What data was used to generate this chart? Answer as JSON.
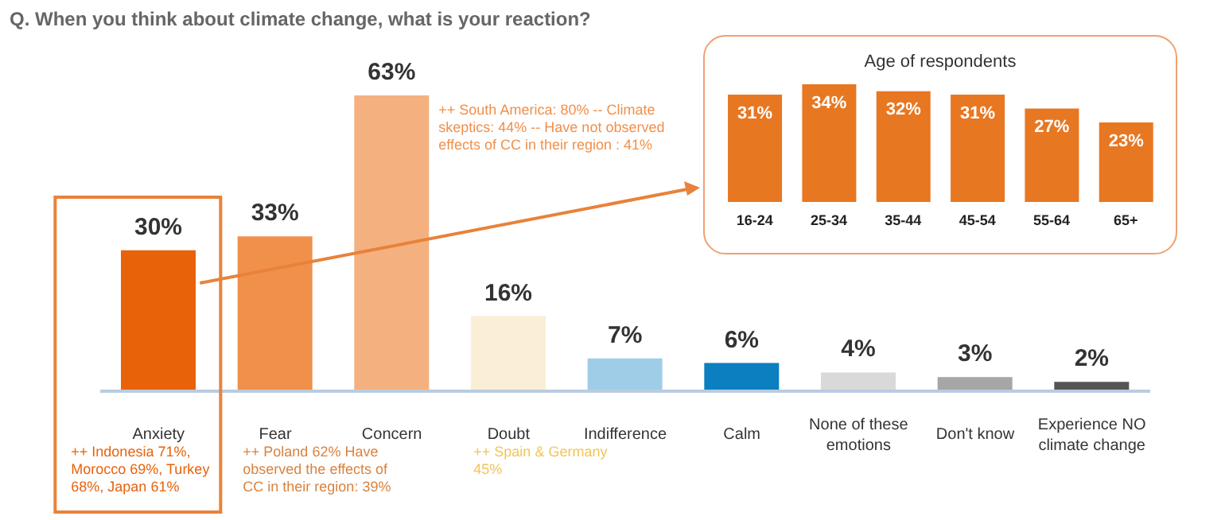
{
  "chart_data": [
    {
      "type": "bar",
      "title": "Q. When you think about climate change, what is your reaction?",
      "categories": [
        "Anxiety",
        "Fear",
        "Concern",
        "Doubt",
        "Indifference",
        "Calm",
        "None of these emotions",
        "Don't know",
        "Experience NO climate change"
      ],
      "values": [
        30,
        33,
        63,
        16,
        7,
        6,
        4,
        3,
        2
      ],
      "value_labels": [
        "30%",
        "33%",
        "63%",
        "16%",
        "7%",
        "6%",
        "4%",
        "3%",
        "2%"
      ],
      "colors": [
        "#e8620a",
        "#f0904a",
        "#f5b07f",
        "#fbeed7",
        "#9fcde8",
        "#0b7fc0",
        "#d9d9d9",
        "#a6a6a6",
        "#555555"
      ],
      "annotations": [
        "++ Indonesia 71%, Morocco 69%, Turkey 68%, Japan 61%",
        "++ Poland 62% Have observed the effects of CC in their region: 39%",
        "++ South America: 80% -- Climate skeptics: 44% -- Have not observed effects of CC in their region : 41%",
        "++ Spain & Germany 45%"
      ]
    },
    {
      "type": "bar",
      "title": "Age of respondents",
      "categories": [
        "16-24",
        "25-34",
        "35-44",
        "45-54",
        "55-64",
        "65+"
      ],
      "values": [
        31,
        34,
        32,
        31,
        27,
        23
      ],
      "value_labels": [
        "31%",
        "34%",
        "32%",
        "31%",
        "27%",
        "23%"
      ],
      "color": "#e87722"
    }
  ]
}
